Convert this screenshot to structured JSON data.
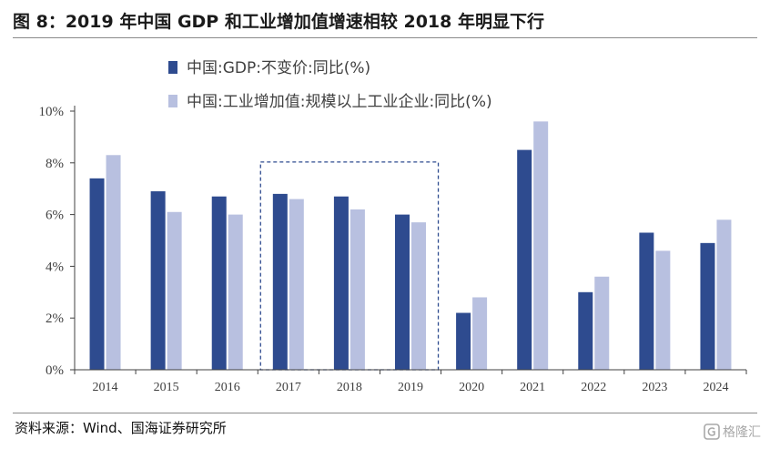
{
  "header": {
    "title": "图 8：2019 年中国 GDP 和工业增加值增速相较 2018 年明显下行"
  },
  "footer": {
    "source": "资料来源：Wind、国海证券研究所",
    "watermark": "格隆汇"
  },
  "colors": {
    "gdp": "#2e4b8f",
    "industry": "#b8c0e0",
    "axis": "#404040",
    "highlight_box": "#2e4b8f"
  },
  "chart_data": {
    "type": "bar",
    "title": "",
    "xlabel": "",
    "ylabel": "",
    "categories": [
      "2014",
      "2015",
      "2016",
      "2017",
      "2018",
      "2019",
      "2020",
      "2021",
      "2022",
      "2023",
      "2024"
    ],
    "series": [
      {
        "name": "中国:GDP:不变价:同比(%)",
        "values": [
          7.4,
          6.9,
          6.7,
          6.8,
          6.7,
          6.0,
          2.2,
          8.5,
          3.0,
          5.3,
          4.9
        ]
      },
      {
        "name": "中国:工业增加值:规模以上工业企业:同比(%)",
        "values": [
          8.3,
          6.1,
          6.0,
          6.6,
          6.2,
          5.7,
          2.8,
          9.6,
          3.6,
          4.6,
          5.8
        ]
      }
    ],
    "ylim": [
      0,
      10
    ],
    "yticks": [
      0,
      2,
      4,
      6,
      8,
      10
    ],
    "ytick_labels": [
      "0%",
      "2%",
      "4%",
      "6%",
      "8%",
      "10%"
    ],
    "legend_position": "top-left",
    "highlight": {
      "categories": [
        "2017",
        "2018",
        "2019"
      ],
      "style": "dashed box"
    }
  }
}
